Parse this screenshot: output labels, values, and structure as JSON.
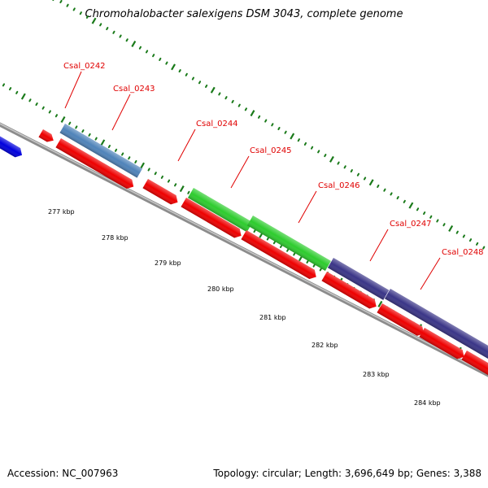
{
  "title": "Chromohalobacter salexigens DSM 3043, complete genome",
  "accession": "Accession: NC_007963",
  "summary": "Topology: circular; Length: 3,696,649 bp; Genes: 3,388",
  "colors": {
    "cds": "#ee0000",
    "cog_blue": "#0000dd",
    "cog_steel": "#4f83b9",
    "cog_green": "#2ecc2e",
    "cog_purple": "#3a3587",
    "backbone": "#8c8c8c",
    "tick": "#1a7a1a",
    "label": "#e00000"
  },
  "genes": [
    "Csal_0242",
    "Csal_0243",
    "Csal_0244",
    "Csal_0245",
    "Csal_0246",
    "Csal_0247",
    "Csal_0248"
  ],
  "kbp_ticks": [
    "277 kbp",
    "278 kbp",
    "279 kbp",
    "280 kbp",
    "281 kbp",
    "282 kbp",
    "283 kbp",
    "284 kbp"
  ]
}
